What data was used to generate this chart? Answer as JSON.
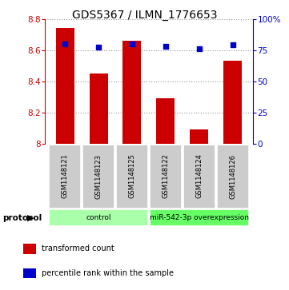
{
  "title": "GDS5367 / ILMN_1776653",
  "samples": [
    "GSM1148121",
    "GSM1148123",
    "GSM1148125",
    "GSM1148122",
    "GSM1148124",
    "GSM1148126"
  ],
  "bar_values": [
    8.74,
    8.45,
    8.66,
    8.29,
    8.09,
    8.53
  ],
  "dot_values": [
    80,
    77,
    80,
    78,
    76,
    79
  ],
  "bar_color": "#cc0000",
  "dot_color": "#0000cc",
  "ylim_left": [
    8.0,
    8.8
  ],
  "ylim_right": [
    0,
    100
  ],
  "yticks_left": [
    8.0,
    8.2,
    8.4,
    8.6,
    8.8
  ],
  "ytick_left_labels": [
    "8",
    "8.2",
    "8.4",
    "8.6",
    "8.8"
  ],
  "yticks_right": [
    0,
    25,
    50,
    75,
    100
  ],
  "ytick_right_labels": [
    "0",
    "25",
    "50",
    "75",
    "100%"
  ],
  "protocol_groups": [
    {
      "label": "control",
      "start": 0,
      "end": 3,
      "color": "#aaffaa"
    },
    {
      "label": "miR-542-3p overexpression",
      "start": 3,
      "end": 6,
      "color": "#66ff66"
    }
  ],
  "protocol_label": "protocol",
  "legend_bar_label": "transformed count",
  "legend_dot_label": "percentile rank within the sample",
  "bar_bottom": 8.0,
  "title_fontsize": 10,
  "tick_fontsize": 7.5,
  "label_fontsize": 7.5,
  "sample_bg_color": "#cccccc",
  "grid_color": "#555555"
}
